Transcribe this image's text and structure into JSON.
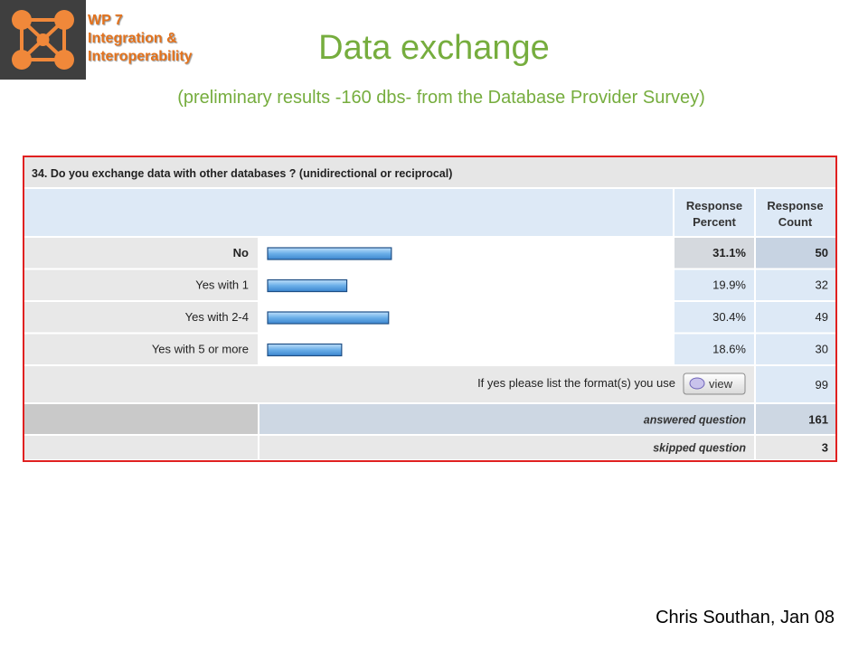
{
  "header": {
    "wp_lines": [
      "WP 7",
      "Integration &",
      "Interoperability"
    ],
    "logo_icon": "network-nodes-logo",
    "accent_color": "#e3731e"
  },
  "title": "Data exchange",
  "subtitle": "(preliminary results -160 dbs- from the Database Provider Survey)",
  "footer": "Chris Southan, Jan 08",
  "chart_data": {
    "type": "bar",
    "orientation": "horizontal",
    "title": "34. Do you exchange data with other databases ? (unidirectional or reciprocal)",
    "columns": [
      "Response Percent",
      "Response Count"
    ],
    "categories": [
      "No",
      "Yes with 1",
      "Yes with 2-4",
      "Yes with 5 or more"
    ],
    "percent_labels": [
      "31.1%",
      "19.9%",
      "30.4%",
      "18.6%"
    ],
    "values": [
      31.1,
      19.9,
      30.4,
      18.6
    ],
    "counts": [
      "50",
      "32",
      "49",
      "30"
    ],
    "xlim": [
      0,
      100
    ],
    "bar_color": "#6aaee8",
    "border_color": "#e02020",
    "extra_row": {
      "label": "If yes please list the format(s) you use",
      "button": "view",
      "count": "99"
    },
    "summary_rows": [
      {
        "label": "answered question",
        "value": "161"
      },
      {
        "label": "skipped question",
        "value": "3"
      }
    ]
  }
}
